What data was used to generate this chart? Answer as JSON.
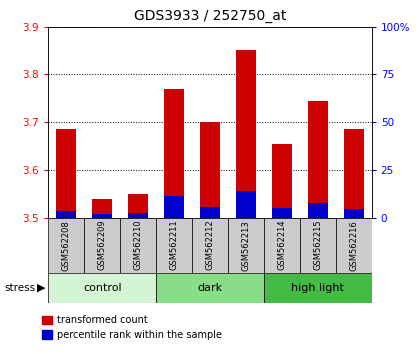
{
  "title": "GDS3933 / 252750_at",
  "samples": [
    "GSM562208",
    "GSM562209",
    "GSM562210",
    "GSM562211",
    "GSM562212",
    "GSM562213",
    "GSM562214",
    "GSM562215",
    "GSM562216"
  ],
  "red_values": [
    3.685,
    3.54,
    3.55,
    3.77,
    3.7,
    3.85,
    3.655,
    3.745,
    3.685
  ],
  "blue_values": [
    3.515,
    3.508,
    3.51,
    3.545,
    3.523,
    3.555,
    3.52,
    3.53,
    3.518
  ],
  "bar_base": 3.5,
  "ylim": [
    3.5,
    3.9
  ],
  "yticks": [
    3.5,
    3.6,
    3.7,
    3.8,
    3.9
  ],
  "y2lim": [
    0,
    100
  ],
  "y2ticks": [
    0,
    25,
    50,
    75,
    100
  ],
  "y2ticklabels": [
    "0",
    "25",
    "50",
    "75",
    "100%"
  ],
  "groups": [
    {
      "label": "control",
      "start": 0,
      "end": 3,
      "color": "#d4f5d4"
    },
    {
      "label": "dark",
      "start": 3,
      "end": 6,
      "color": "#88dd88"
    },
    {
      "label": "high light",
      "start": 6,
      "end": 9,
      "color": "#44bb44"
    }
  ],
  "stress_label": "stress",
  "red_color": "#cc0000",
  "blue_color": "#0000cc",
  "bar_width": 0.55,
  "left_tick_color": "red",
  "right_tick_color": "blue",
  "grid_color": "black",
  "plot_bg": "white",
  "sample_label_bg": "#cccccc",
  "legend_red": "transformed count",
  "legend_blue": "percentile rank within the sample"
}
